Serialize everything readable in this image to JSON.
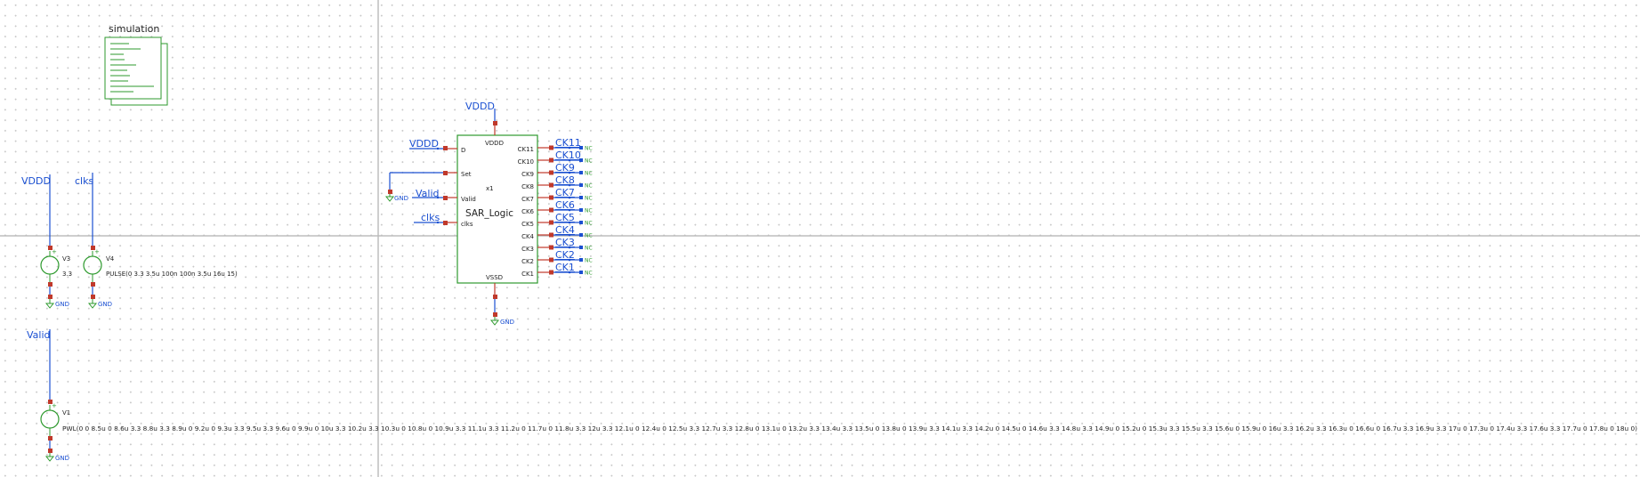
{
  "simulation_block": {
    "title": "simulation"
  },
  "power_nets": {
    "vddd": "VDDD",
    "gnd": "GND"
  },
  "sources": [
    {
      "id": "v3",
      "name": "V3",
      "value": "3.3",
      "net": "VDDD"
    },
    {
      "id": "v4",
      "name": "V4",
      "value": "PULSE(0 3.3 3.5u 100n 100n 3.5u 16u 15)",
      "net": "clks"
    },
    {
      "id": "v1",
      "name": "V1",
      "value": "PWL(0 0 8.5u 0 8.6u 3.3 8.8u 3.3 8.9u 0 9.2u 0 9.3u 3.3 9.5u 3.3 9.6u 0 9.9u 0 10u 3.3 10.2u 3.3 10.3u 0 10.8u 0 10.9u 3.3 11.1u 3.3 11.2u 0 11.7u 0 11.8u 3.3 12u 3.3 12.1u 0 12.4u 0 12.5u 3.3 12.7u 3.3 12.8u 0 13.1u 0 13.2u 3.3 13.4u 3.3 13.5u 0 13.8u 0 13.9u 3.3 14.1u 3.3 14.2u 0 14.5u 0 14.6u 3.3 14.8u 3.3 14.9u 0 15.2u 0 15.3u 3.3 15.5u 3.3 15.6u 0 15.9u 0 16u 3.3 16.2u 3.3 16.3u 0 16.6u 0 16.7u 3.3 16.9u 3.3 17u 0 17.3u 0 17.4u 3.3 17.6u 3.3 17.7u 0 17.8u 0 18u 0)",
      "net": "Valid"
    }
  ],
  "instance": {
    "ref": "x1",
    "name": "SAR_Logic",
    "top_pin": "VDDD",
    "bottom_pin": "VSSD",
    "left_pins": [
      "D",
      "Set",
      "Valid",
      "clks"
    ],
    "right_pins": [
      "CK11",
      "CK10",
      "CK9",
      "CK8",
      "CK7",
      "CK6",
      "CK5",
      "CK4",
      "CK3",
      "CK2",
      "CK1"
    ]
  },
  "wire_labels": {
    "vddd_top": "VDDD",
    "vddd_left": "VDDD",
    "valid_in": "Valid",
    "clks_in": "clks",
    "outputs": [
      "CK11",
      "CK10",
      "CK9",
      "CK8",
      "CK7",
      "CK6",
      "CK5",
      "CK4",
      "CK3",
      "CK2",
      "CK1"
    ],
    "src_vddd": "VDDD",
    "src_clks": "clks",
    "src_valid": "Valid"
  },
  "no_connect": "NC"
}
